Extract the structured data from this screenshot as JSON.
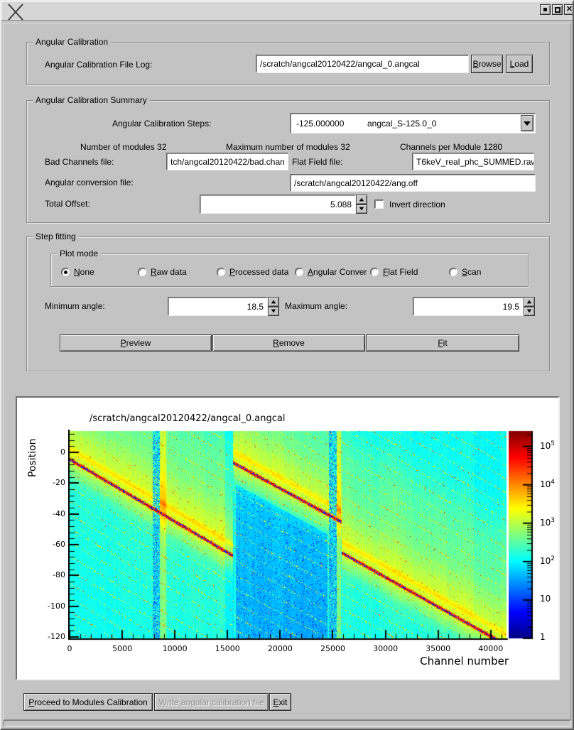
{
  "window": {
    "controls": {
      "minimize": "minimize",
      "maximize": "maximize",
      "close": "close"
    }
  },
  "colors": {
    "window_bg": "#c3c3c3",
    "titlebar_bg": "#d6d6d6",
    "field_bg": "#ffffff",
    "text": "#000000",
    "disabled_text": "#8e8e8e"
  },
  "calibration_group": {
    "title": "Angular Calibration",
    "file_log_label": "Angular Calibration File Log:",
    "file_log_value": "/scratch/angcal20120422/angcal_0.angcal",
    "browse_label": "Browse",
    "load_label": "Load"
  },
  "summary_group": {
    "title": "Angular Calibration Summary",
    "steps_label": "Angular Calibration Steps:",
    "steps_value": "-125.000000",
    "steps_name": "angcal_S-125.0_0",
    "modules_info": "Number of modules 32",
    "max_modules_info": "Maximum number of modules 32",
    "channels_info": "Channels per Module 1280",
    "bad_channels_label": "Bad Channels file:",
    "bad_channels_value": "tch/angcal20120422/bad.chan",
    "flat_field_label": "Flat Field file:",
    "flat_field_value": "T6keV_real_phc_SUMMED.raw",
    "ang_conv_label": "Angular conversion file:",
    "ang_conv_value": "/scratch/angcal20120422/ang.off",
    "total_offset_label": "Total Offset:",
    "total_offset_value": "5.088",
    "invert_label": "Invert direction",
    "invert_checked": false
  },
  "step_fitting_group": {
    "title": "Step fitting",
    "plot_mode": {
      "title": "Plot mode",
      "options": [
        {
          "label": "None",
          "selected": true
        },
        {
          "label": "Raw data",
          "selected": false
        },
        {
          "label": "Processed data",
          "selected": false
        },
        {
          "label": "Angular Conversion",
          "selected": false
        },
        {
          "label": "Flat Field",
          "selected": false
        },
        {
          "label": "Scan",
          "selected": false
        }
      ]
    },
    "min_angle_label": "Minimum angle:",
    "min_angle_value": "18.5",
    "max_angle_label": "Maximum angle:",
    "max_angle_value": "19.5",
    "preview_label": "Preview",
    "remove_label": "Remove",
    "fit_label": "Fit"
  },
  "footer": {
    "proceed_label": "Proceed to Modules Calibration",
    "write_label": "Write angular calibration file",
    "write_enabled": false,
    "exit_label": "Exit"
  },
  "chart_data": {
    "type": "heatmap",
    "title": "/scratch/angcal20120422/angcal_0.angcal",
    "xlabel": "Channel number",
    "ylabel": "Position",
    "xlim": [
      0,
      41500
    ],
    "ylim": [
      13.8,
      -121
    ],
    "x_ticks": [
      0,
      5000,
      10000,
      15000,
      20000,
      25000,
      30000,
      35000,
      40000
    ],
    "x_minor_step": 1000,
    "y_ticks": [
      0,
      -20,
      -40,
      -60,
      -80,
      -100,
      -120
    ],
    "y_minor_step": 4,
    "colormap": "jet",
    "colorbar": {
      "scale": "log",
      "min": 1,
      "max_exp": 5.4,
      "tick_exponents": [
        5,
        4,
        3,
        2,
        1,
        0
      ]
    },
    "ridge_segments": [
      {
        "x0": 0,
        "y0": -4.6,
        "x1": 15500,
        "y1": -67.2
      },
      {
        "x0": 15560,
        "y0": -6.9,
        "x1": 25750,
        "y1": -45.0
      },
      {
        "x0": 25900,
        "y0": -65.5,
        "x1": 41500,
        "y1": -125.4
      }
    ],
    "noisy_bands": [
      [
        7900,
        8600
      ],
      [
        24650,
        25350
      ]
    ],
    "bright_bands": [
      [
        8600,
        9200
      ],
      [
        25350,
        25780
      ]
    ],
    "dim_band": [
      14800,
      15560
    ],
    "dark_region": [
      15800,
      24500
    ],
    "echo_spacing": 9,
    "secondary_ridge_offset": 58,
    "modules": {
      "count": 32,
      "channels_per_module": 1280
    },
    "seed": 1337
  }
}
